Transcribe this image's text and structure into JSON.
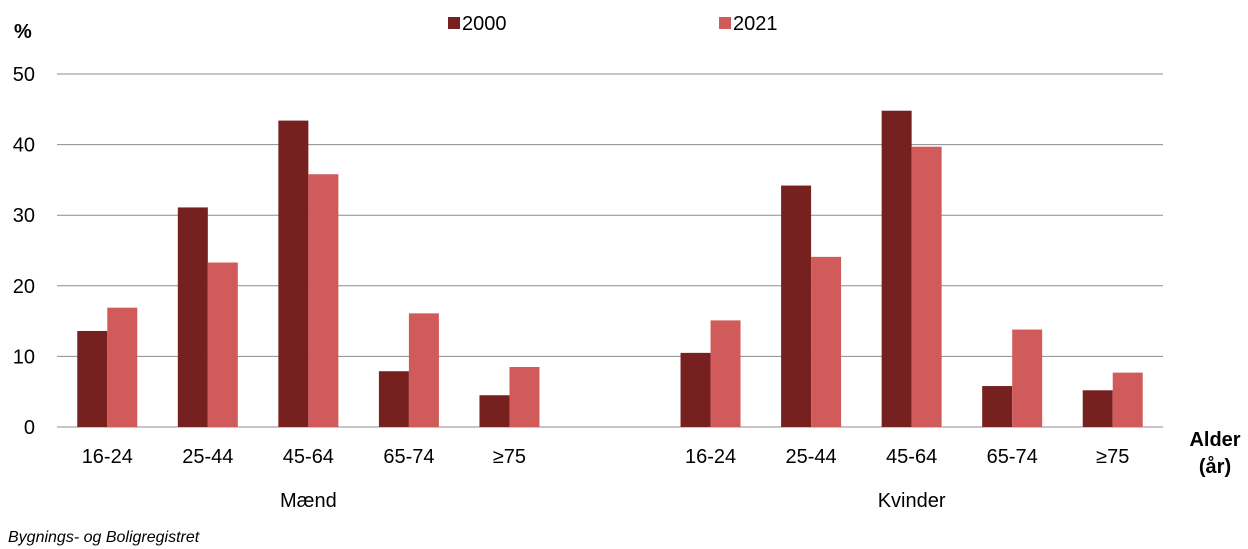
{
  "chart_data": {
    "type": "bar",
    "ylabel": "%",
    "xlabel_line1": "Alder",
    "xlabel_line2": "(år)",
    "source": "Bygnings- og Boligregistret",
    "ylim": [
      0,
      50
    ],
    "yticks": [
      0,
      10,
      20,
      30,
      40,
      50
    ],
    "grid": true,
    "legend_position": "top-center",
    "groups": [
      {
        "name": "Mænd",
        "categories": [
          "16-24",
          "25-44",
          "45-64",
          "65-74",
          "≥75"
        ]
      },
      {
        "name": "Kvinder",
        "categories": [
          "16-24",
          "25-44",
          "45-64",
          "65-74",
          "≥75"
        ]
      }
    ],
    "series": [
      {
        "name": "2000",
        "color": "#76201f",
        "values": [
          13.6,
          31.1,
          43.4,
          7.9,
          4.5,
          10.5,
          34.2,
          44.8,
          5.8,
          5.2
        ]
      },
      {
        "name": "2021",
        "color": "#d15b5b",
        "values": [
          16.9,
          23.3,
          35.8,
          16.1,
          8.5,
          15.1,
          24.1,
          39.7,
          13.8,
          7.7
        ]
      }
    ]
  }
}
